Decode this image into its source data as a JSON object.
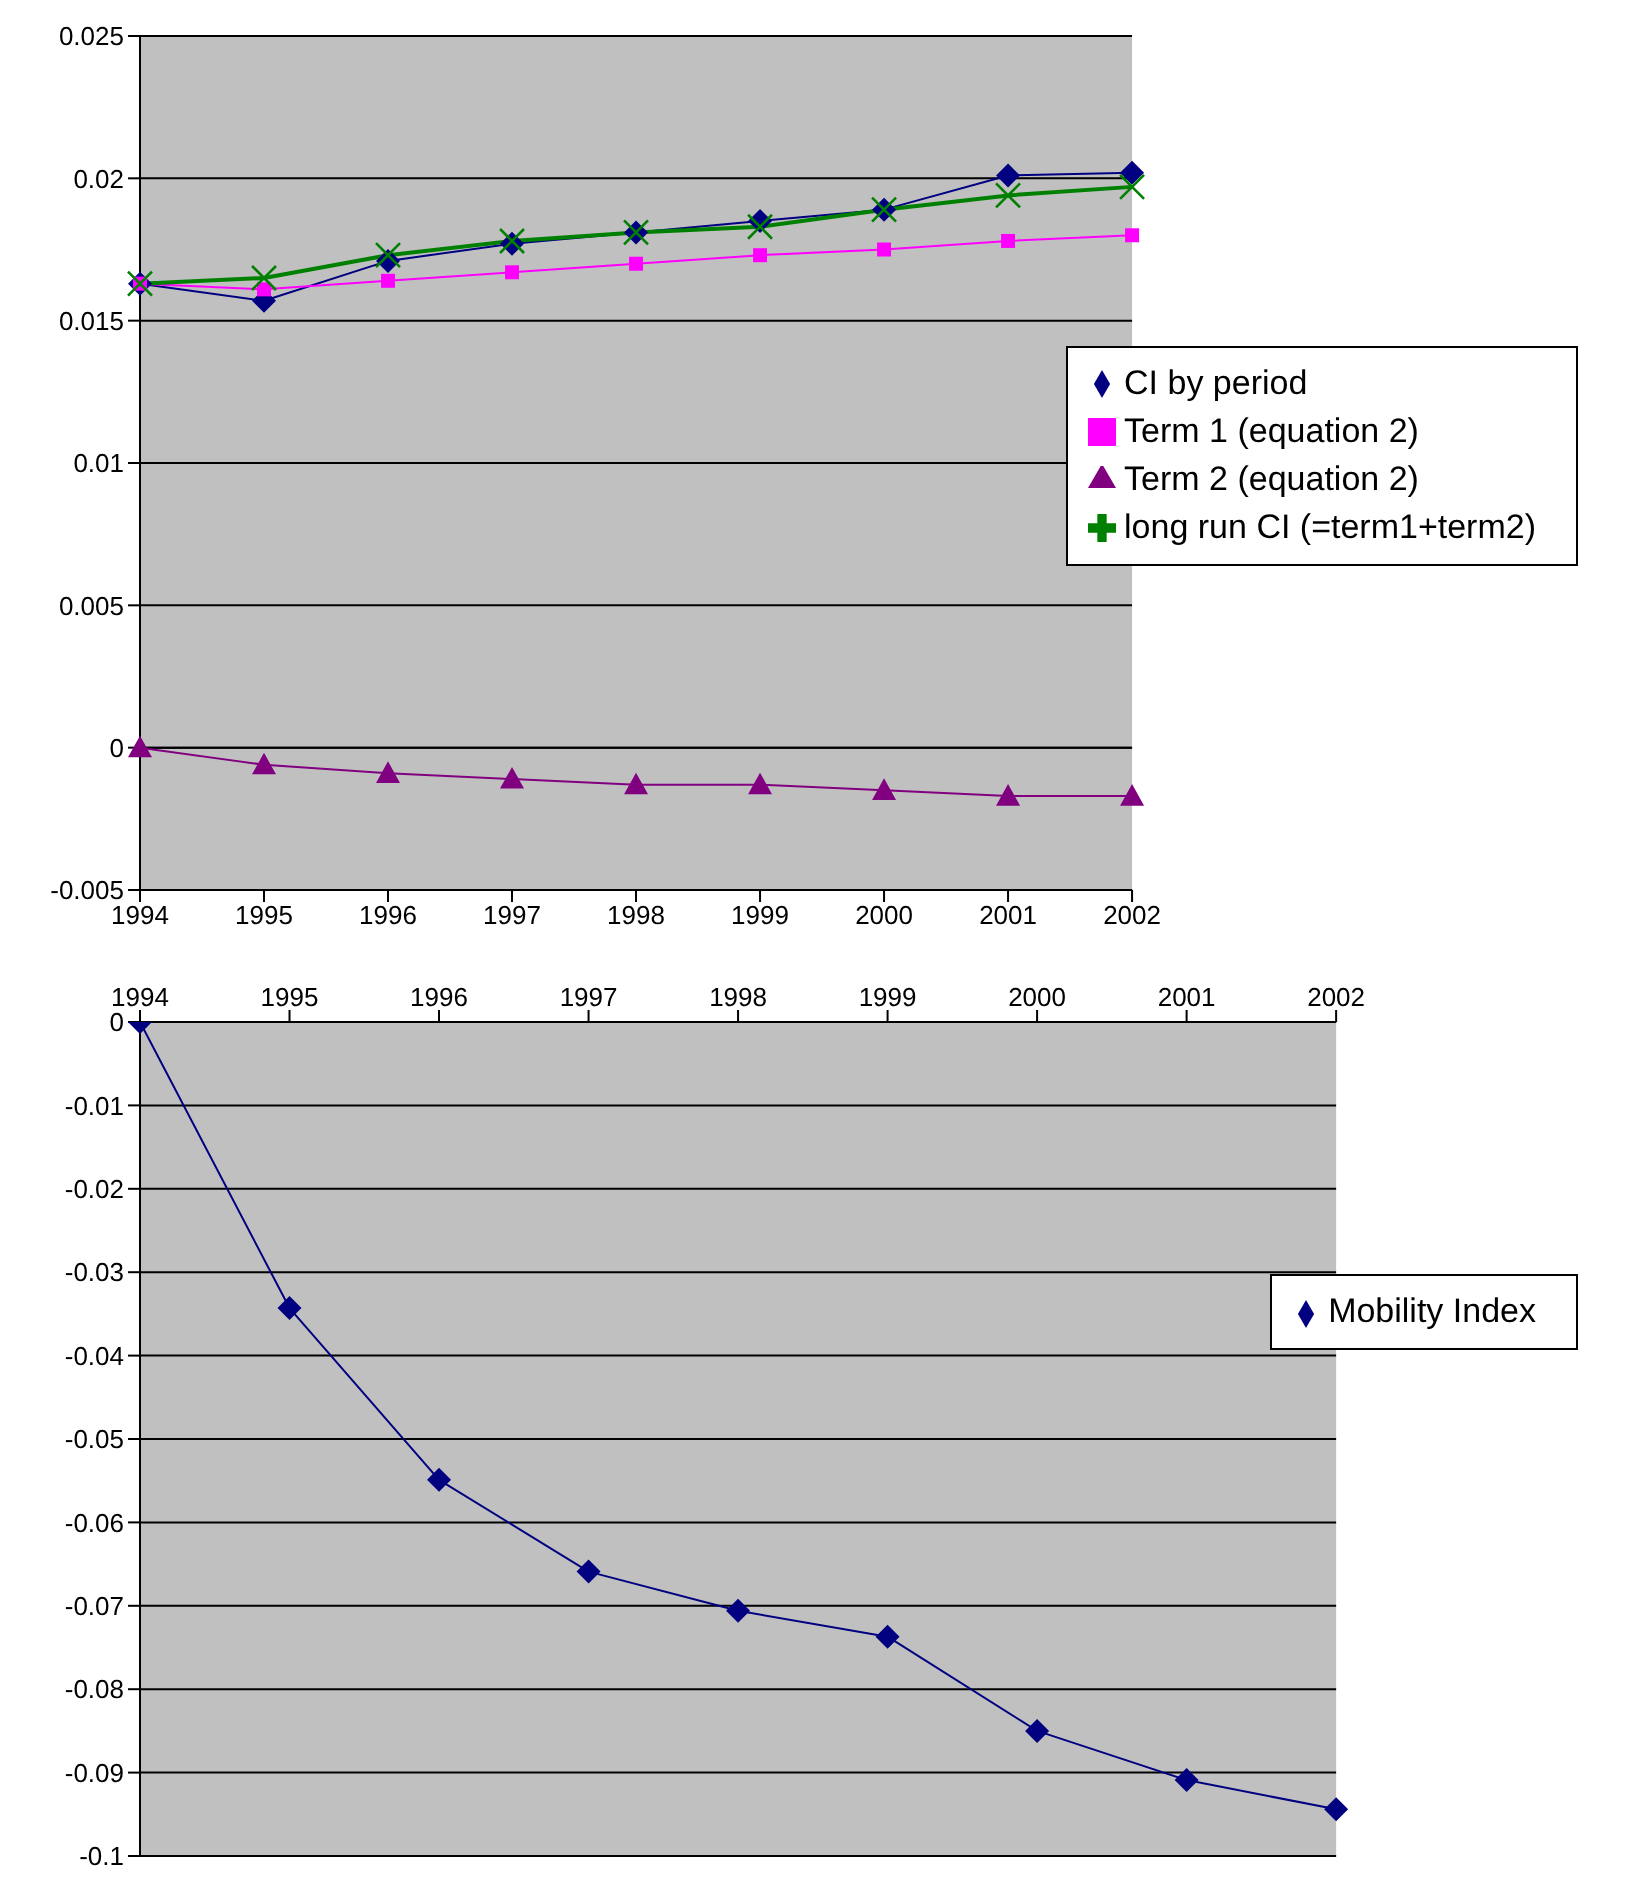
{
  "chart_data": [
    {
      "type": "line",
      "categories": [
        "1994",
        "1995",
        "1996",
        "1997",
        "1998",
        "1999",
        "2000",
        "2001",
        "2002"
      ],
      "series": [
        {
          "name": "CI by period",
          "color": "#000080",
          "marker": "diamond",
          "values": [
            0.0163,
            0.0157,
            0.0171,
            0.0177,
            0.0181,
            0.0185,
            0.0189,
            0.0201,
            0.0202
          ]
        },
        {
          "name": "Term 1 (equation 2)",
          "color": "#ff00ff",
          "marker": "square",
          "values": [
            0.0163,
            0.0161,
            0.0164,
            0.0167,
            0.017,
            0.0173,
            0.0175,
            0.0178,
            0.018
          ]
        },
        {
          "name": "Term 2 (equation 2)",
          "color": "#800080",
          "marker": "triangle",
          "values": [
            0,
            -0.0006,
            -0.0009,
            -0.0011,
            -0.0013,
            -0.0013,
            -0.0015,
            -0.0017,
            -0.0017
          ]
        },
        {
          "name": "long run CI (=term1+term2)",
          "color": "#008000",
          "marker": "cross",
          "values": [
            0.0163,
            0.0165,
            0.0173,
            0.0178,
            0.0181,
            0.0183,
            0.0189,
            0.0194,
            0.0197
          ]
        }
      ],
      "ylim": [
        -0.005,
        0.025
      ],
      "yticks": [
        -0.005,
        0,
        0.005,
        0.01,
        0.015,
        0.02,
        0.025
      ],
      "grid": "y",
      "legend": "right"
    },
    {
      "type": "line",
      "categories": [
        "1994",
        "1995",
        "1996",
        "1997",
        "1998",
        "1999",
        "2000",
        "2001",
        "2002"
      ],
      "series": [
        {
          "name": "Mobility Index",
          "color": "#000080",
          "marker": "diamond",
          "values": [
            0,
            -0.0343,
            -0.0549,
            -0.0659,
            -0.0706,
            -0.0737,
            -0.085,
            -0.0909,
            -0.0944
          ]
        }
      ],
      "ylim": [
        -0.1,
        0
      ],
      "yticks": [
        -0.1,
        -0.09,
        -0.08,
        -0.07,
        -0.06,
        -0.05,
        -0.04,
        -0.03,
        -0.02,
        -0.01,
        0
      ],
      "grid": "y",
      "legend": "right"
    }
  ]
}
